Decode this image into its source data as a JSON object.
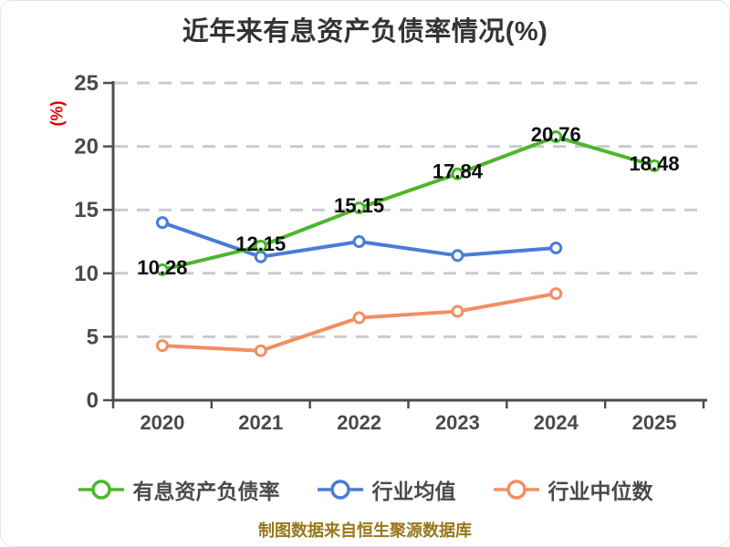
{
  "title": "近年来有息资产负债率情况(%)",
  "footer": "制图数据来自恒生聚源数据库",
  "colors": {
    "title_text": "#333333",
    "axis": "#4d4d4d",
    "tick_text": "#4a4a4a",
    "gridline": "#cbcbcb",
    "y_unit_label": "#e60000",
    "data_label_text": "#0d0d0d",
    "legend_text": "#4a4a4a",
    "footer_text": "#97781c",
    "series_green": "#4cb62c",
    "series_blue": "#4a7cd6",
    "series_orange": "#f28e62"
  },
  "chart_data": {
    "type": "line",
    "title": "近年来有息资产负债率情况(%)",
    "ylabel": "(%)",
    "xlabel": "",
    "categories": [
      "2020",
      "2021",
      "2022",
      "2023",
      "2024",
      "2025"
    ],
    "ylim": [
      0,
      25
    ],
    "yticks": [
      0,
      5,
      10,
      15,
      20,
      25
    ],
    "grid": "horizontal-dashed",
    "legend_position": "bottom",
    "series": [
      {
        "name": "有息资产负债率",
        "color": "#4cb62c",
        "values": [
          10.28,
          12.15,
          15.15,
          17.84,
          20.76,
          18.48
        ],
        "point_labels": [
          "10.28",
          "12.15",
          "15.15",
          "17.84",
          "20.76",
          "18.48"
        ]
      },
      {
        "name": "行业均值",
        "color": "#4a7cd6",
        "values": [
          14.0,
          11.3,
          12.5,
          11.4,
          12.0,
          null
        ],
        "point_labels": null
      },
      {
        "name": "行业中位数",
        "color": "#f28e62",
        "values": [
          4.3,
          3.9,
          6.5,
          7.0,
          8.4,
          null
        ],
        "point_labels": null
      }
    ]
  }
}
